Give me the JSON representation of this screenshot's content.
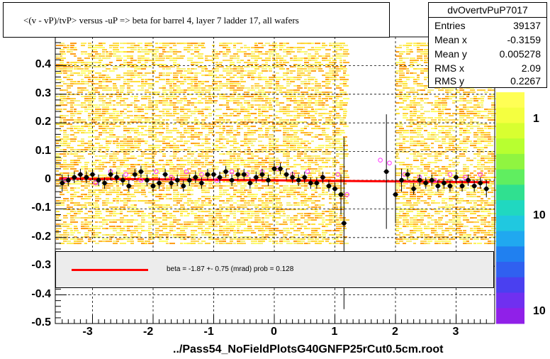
{
  "title": "<(v - vP)/tvP> versus  -uP => beta for barrel 4, layer 7 ladder 17, all wafers",
  "stats": {
    "name": "dvOvertvPuP7017",
    "rows": [
      {
        "label": "Entries",
        "value": "39137"
      },
      {
        "label": "Mean x",
        "value": "-0.3159"
      },
      {
        "label": "Mean y",
        "value": "0.005278"
      },
      {
        "label": "RMS x",
        "value": "2.09"
      },
      {
        "label": "RMS y",
        "value": "0.2267"
      }
    ]
  },
  "fit_legend": "beta =   -1.87 +-  0.75 (mrad) prob = 0.128",
  "footer": "../Pass54_NoFieldPlotsG40GNFP25rCut0.5cm.root",
  "colors": {
    "fit_line": "#ff0000",
    "profile_points": "#000000",
    "open_points": "#ff33ff"
  },
  "chart_data": {
    "type": "scatter",
    "xlim": [
      -3.6,
      3.6
    ],
    "ylim": [
      -0.5,
      0.5
    ],
    "grid": true,
    "x_ticks": [
      "-3",
      "-2",
      "-1",
      "0",
      "1",
      "2",
      "3"
    ],
    "y_ticks": [
      "-0.5",
      "-0.4",
      "-0.3",
      "-0.2",
      "-0.1",
      "0",
      "0.1",
      "0.2",
      "0.3",
      "0.4"
    ],
    "z_ticks": [
      "1",
      "10",
      "10"
    ],
    "fit": {
      "x": [
        -3.55,
        3.55
      ],
      "y": [
        0.006,
        -0.007
      ]
    },
    "profile": {
      "x": [
        -3.5,
        -3.4,
        -3.3,
        -3.2,
        -3.1,
        -3.0,
        -2.9,
        -2.8,
        -2.7,
        -2.6,
        -2.5,
        -2.4,
        -2.3,
        -2.2,
        -2.1,
        -2.0,
        -1.9,
        -1.8,
        -1.7,
        -1.6,
        -1.5,
        -1.4,
        -1.3,
        -1.2,
        -1.1,
        -1.0,
        -0.9,
        -0.8,
        -0.7,
        -0.6,
        -0.5,
        -0.4,
        -0.3,
        -0.2,
        -0.1,
        0.0,
        0.1,
        0.2,
        0.3,
        0.4,
        0.5,
        0.6,
        0.7,
        0.8,
        0.9,
        1.0,
        1.1,
        1.15,
        1.85,
        2.0,
        2.1,
        2.2,
        2.3,
        2.4,
        2.5,
        2.6,
        2.7,
        2.8,
        2.9,
        3.0,
        3.1,
        3.2,
        3.3,
        3.4,
        3.5
      ],
      "y": [
        -0.01,
        0.0,
        0.01,
        0.02,
        0.01,
        0.02,
        0.0,
        -0.01,
        0.02,
        0.01,
        0.0,
        -0.02,
        0.02,
        0.03,
        0.0,
        -0.02,
        -0.01,
        0.02,
        -0.01,
        0.0,
        -0.02,
        0.0,
        0.01,
        -0.01,
        0.02,
        0.02,
        0.01,
        0.03,
        0.0,
        0.02,
        0.02,
        -0.01,
        0.01,
        0.02,
        0.0,
        0.04,
        0.04,
        0.02,
        0.01,
        0.0,
        0.01,
        -0.01,
        -0.01,
        0.01,
        -0.02,
        -0.03,
        -0.05,
        -0.15,
        0.03,
        -0.05,
        0.0,
        0.02,
        -0.03,
        0.0,
        -0.01,
        0.0,
        -0.02,
        -0.01,
        -0.02,
        0.01,
        -0.02,
        0.0,
        -0.02,
        -0.01,
        -0.03
      ],
      "yerr": [
        0.03,
        0.02,
        0.02,
        0.02,
        0.02,
        0.02,
        0.02,
        0.02,
        0.02,
        0.02,
        0.02,
        0.02,
        0.02,
        0.02,
        0.02,
        0.02,
        0.02,
        0.02,
        0.02,
        0.02,
        0.02,
        0.02,
        0.02,
        0.02,
        0.02,
        0.02,
        0.02,
        0.02,
        0.02,
        0.02,
        0.02,
        0.02,
        0.02,
        0.02,
        0.02,
        0.02,
        0.02,
        0.02,
        0.02,
        0.02,
        0.02,
        0.02,
        0.02,
        0.02,
        0.02,
        0.02,
        0.07,
        0.3,
        0.2,
        0.1,
        0.04,
        0.02,
        0.02,
        0.02,
        0.02,
        0.02,
        0.02,
        0.02,
        0.02,
        0.02,
        0.02,
        0.02,
        0.02,
        0.02,
        0.03
      ]
    },
    "open_points": {
      "x": [
        -3.45,
        -3.2,
        -2.95,
        -2.7,
        -2.45,
        -2.2,
        -1.95,
        -1.7,
        -1.45,
        -1.2,
        -0.95,
        -0.7,
        -0.45,
        -0.2,
        0.05,
        0.3,
        0.55,
        0.8,
        1.05,
        1.2,
        1.75,
        1.9,
        2.15,
        2.4,
        2.65,
        2.9,
        3.15,
        3.4
      ],
      "y": [
        0.0,
        0.02,
        -0.01,
        0.03,
        0.02,
        0.0,
        0.03,
        0.01,
        0.03,
        0.02,
        0.0,
        0.03,
        0.02,
        0.03,
        0.04,
        0.02,
        0.03,
        0.01,
        0.02,
        -0.05,
        0.07,
        0.06,
        0.02,
        0.01,
        0.0,
        0.02,
        0.01,
        0.02
      ]
    }
  }
}
